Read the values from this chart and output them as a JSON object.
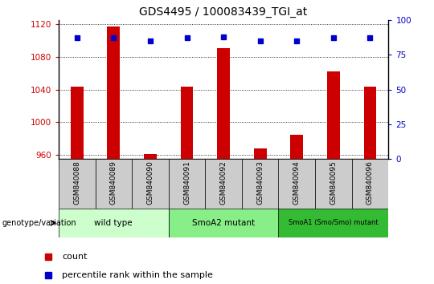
{
  "title": "GDS4495 / 100083439_TGI_at",
  "samples": [
    "GSM840088",
    "GSM840089",
    "GSM840090",
    "GSM840091",
    "GSM840092",
    "GSM840093",
    "GSM840094",
    "GSM840095",
    "GSM840096"
  ],
  "counts": [
    1043,
    1117,
    961,
    1043,
    1090,
    968,
    985,
    1062,
    1043
  ],
  "percentiles": [
    87,
    87,
    85,
    87,
    88,
    85,
    85,
    87,
    87
  ],
  "ylim_left": [
    955,
    1125
  ],
  "ylim_right": [
    0,
    100
  ],
  "yticks_left": [
    960,
    1000,
    1040,
    1080,
    1120
  ],
  "yticks_right": [
    0,
    25,
    50,
    75,
    100
  ],
  "bar_color": "#cc0000",
  "dot_color": "#0000cc",
  "groups": [
    {
      "label": "wild type",
      "start": 0,
      "end": 3,
      "color": "#ccffcc"
    },
    {
      "label": "SmoA2 mutant",
      "start": 3,
      "end": 6,
      "color": "#88ee88"
    },
    {
      "label": "SmoA1 (Smo/Smo) mutant",
      "start": 6,
      "end": 9,
      "color": "#33bb33"
    }
  ],
  "legend_count_label": "count",
  "legend_percentile_label": "percentile rank within the sample",
  "genotype_label": "genotype/variation",
  "left_tick_color": "#cc0000",
  "right_tick_color": "#0000cc",
  "sample_bg_color": "#cccccc",
  "spine_color": "#000000"
}
